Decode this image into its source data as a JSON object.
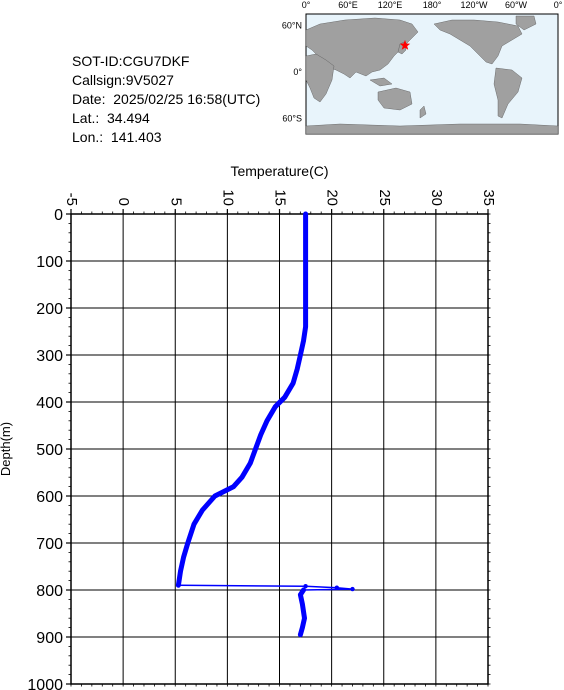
{
  "info": {
    "sot_id": "SOT-ID:CGU7DKF",
    "callsign": "Callsign:9V5027",
    "date": "Date:  2025/02/25 16:58(UTC)",
    "lat": "Lat.:  34.494",
    "lon": "Lon.:  141.403"
  },
  "map": {
    "top_labels": [
      "0°",
      "60°E",
      "120°E",
      "180°",
      "120°W",
      "60°W",
      "0°"
    ],
    "side_labels": [
      "60°N",
      "0°",
      "60°S"
    ],
    "marker": {
      "lat": 34.494,
      "lon": 141.403,
      "color": "#ff0000"
    },
    "ocean_color": "#e8f4fb",
    "land_color": "#a0a0a0"
  },
  "chart_data": {
    "type": "line",
    "xlabel": "Temperature(C)",
    "ylabel": "Depth(m)",
    "xlim": [
      -5,
      35
    ],
    "ylim": [
      1000,
      0
    ],
    "x_ticks": [
      "-5",
      "0",
      "5",
      "10",
      "15",
      "20",
      "25",
      "30",
      "35"
    ],
    "y_ticks": [
      "0",
      "100",
      "200",
      "300",
      "400",
      "500",
      "600",
      "700",
      "800",
      "900",
      "1000"
    ],
    "grid": true,
    "line_color": "#0000ff",
    "series": [
      {
        "points": [
          [
            17.5,
            0
          ],
          [
            17.5,
            50
          ],
          [
            17.5,
            100
          ],
          [
            17.5,
            150
          ],
          [
            17.5,
            200
          ],
          [
            17.5,
            240
          ],
          [
            17.3,
            270
          ],
          [
            17.0,
            300
          ],
          [
            16.7,
            330
          ],
          [
            16.3,
            360
          ],
          [
            15.5,
            390
          ],
          [
            14.6,
            410
          ],
          [
            13.8,
            440
          ],
          [
            13.2,
            470
          ],
          [
            12.7,
            500
          ],
          [
            12.2,
            530
          ],
          [
            11.4,
            560
          ],
          [
            10.6,
            580
          ],
          [
            8.8,
            600
          ],
          [
            7.6,
            630
          ],
          [
            6.8,
            660
          ],
          [
            6.2,
            700
          ],
          [
            5.8,
            730
          ],
          [
            5.5,
            760
          ],
          [
            5.3,
            790
          ],
          [
            17.5,
            792
          ],
          [
            20.5,
            795
          ],
          [
            22.0,
            798
          ],
          [
            17.3,
            800
          ],
          [
            17.0,
            810
          ],
          [
            17.2,
            830
          ],
          [
            17.4,
            860
          ],
          [
            17.2,
            880
          ],
          [
            17.0,
            895
          ]
        ]
      }
    ]
  }
}
